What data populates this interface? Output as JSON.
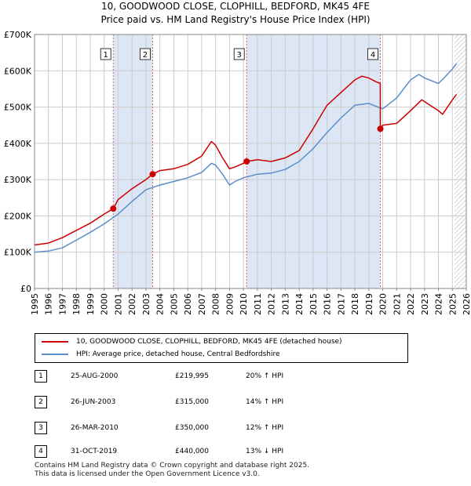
{
  "title": {
    "line1": "10, GOODWOOD CLOSE, CLOPHILL, BEDFORD, MK45 4FE",
    "line2": "Price paid vs. HM Land Registry's House Price Index (HPI)"
  },
  "colors": {
    "red": "#cc0000",
    "blue": "#5b8ec9",
    "shade": "#dce6f4",
    "grid": "#cccccc",
    "vline": "#e06060"
  },
  "chart_data": {
    "type": "line",
    "xlim": [
      1995,
      2026
    ],
    "ylim": [
      0,
      700000
    ],
    "y_ticks": [
      0,
      100000,
      200000,
      300000,
      400000,
      500000,
      600000,
      700000
    ],
    "y_tick_labels": [
      "£0",
      "£100K",
      "£200K",
      "£300K",
      "£400K",
      "£500K",
      "£600K",
      "£700K"
    ],
    "x_ticks": [
      1995,
      1996,
      1997,
      1998,
      1999,
      2000,
      2001,
      2002,
      2003,
      2004,
      2005,
      2006,
      2007,
      2008,
      2009,
      2010,
      2011,
      2012,
      2013,
      2014,
      2015,
      2016,
      2017,
      2018,
      2019,
      2020,
      2021,
      2022,
      2023,
      2024,
      2025,
      2026
    ],
    "x_tick_labels": [
      "1995",
      "1996",
      "1997",
      "1998",
      "1999",
      "2000",
      "2001",
      "2002",
      "2003",
      "2004",
      "2005",
      "2006",
      "2007",
      "2008",
      "2009",
      "2010",
      "2011",
      "2012",
      "2013",
      "2014",
      "2015",
      "2016",
      "2017",
      "2018",
      "2019",
      "2020",
      "2021",
      "2022",
      "2023",
      "2024",
      "2025",
      "2026"
    ],
    "shaded_ranges": [
      [
        2000.65,
        2003.48
      ],
      [
        2010.23,
        2019.83
      ]
    ],
    "hatched_range": [
      2025.15,
      2026
    ],
    "series": [
      {
        "name": "10, GOODWOOD CLOSE, CLOPHILL, BEDFORD, MK45 4FE (detached house)",
        "x": [
          1995,
          1996,
          1997,
          1998,
          1999,
          2000,
          2000.65,
          2001,
          2002,
          2003,
          2003.48,
          2004,
          2005,
          2006,
          2007,
          2007.7,
          2008,
          2008.5,
          2009,
          2009.4,
          2010,
          2010.23,
          2011,
          2012,
          2013,
          2014,
          2015,
          2016,
          2017,
          2018,
          2018.5,
          2019,
          2019.5,
          2019.82,
          2019.83,
          2020,
          2021,
          2022,
          2022.8,
          2023,
          2024,
          2024.3,
          2025,
          2025.3
        ],
        "y": [
          120000,
          125000,
          140000,
          160000,
          180000,
          205000,
          219995,
          245000,
          275000,
          300000,
          315000,
          325000,
          330000,
          342000,
          365000,
          405000,
          395000,
          360000,
          330000,
          335000,
          345000,
          350000,
          355000,
          350000,
          360000,
          380000,
          440000,
          505000,
          540000,
          575000,
          585000,
          580000,
          570000,
          565000,
          440000,
          450000,
          455000,
          490000,
          520000,
          515000,
          490000,
          480000,
          520000,
          535000
        ]
      },
      {
        "name": "HPI: Average price, detached house, Central Bedfordshire",
        "x": [
          1995,
          1996,
          1997,
          1998,
          1999,
          2000,
          2001,
          2002,
          2003,
          2004,
          2005,
          2006,
          2007,
          2007.7,
          2008,
          2008.5,
          2009,
          2009.4,
          2010,
          2011,
          2012,
          2013,
          2014,
          2015,
          2016,
          2017,
          2018,
          2019,
          2020,
          2021,
          2022,
          2022.6,
          2023,
          2024,
          2024.4,
          2025,
          2025.3
        ],
        "y": [
          100000,
          103000,
          112000,
          133000,
          155000,
          178000,
          205000,
          240000,
          272000,
          285000,
          295000,
          305000,
          320000,
          345000,
          340000,
          315000,
          285000,
          295000,
          305000,
          315000,
          318000,
          328000,
          350000,
          385000,
          430000,
          470000,
          505000,
          510000,
          495000,
          525000,
          575000,
          590000,
          580000,
          565000,
          580000,
          605000,
          620000
        ]
      }
    ],
    "sales": [
      {
        "label": "1",
        "x": 2000.65,
        "y": 219995
      },
      {
        "label": "2",
        "x": 2003.48,
        "y": 315000
      },
      {
        "label": "3",
        "x": 2010.23,
        "y": 350000
      },
      {
        "label": "4",
        "x": 2019.83,
        "y": 440000
      }
    ]
  },
  "legend": {
    "series1": "10, GOODWOOD CLOSE, CLOPHILL, BEDFORD, MK45 4FE (detached house)",
    "series2": "HPI: Average price, detached house, Central Bedfordshire"
  },
  "transactions": [
    {
      "num": "1",
      "date": "25-AUG-2000",
      "price": "£219,995",
      "hpi": "20% ↑ HPI"
    },
    {
      "num": "2",
      "date": "26-JUN-2003",
      "price": "£315,000",
      "hpi": "14% ↑ HPI"
    },
    {
      "num": "3",
      "date": "26-MAR-2010",
      "price": "£350,000",
      "hpi": "12% ↑ HPI"
    },
    {
      "num": "4",
      "date": "31-OCT-2019",
      "price": "£440,000",
      "hpi": "13% ↓ HPI"
    }
  ],
  "footer": {
    "line1": "Contains HM Land Registry data © Crown copyright and database right 2025.",
    "line2": "This data is licensed under the Open Government Licence v3.0."
  }
}
